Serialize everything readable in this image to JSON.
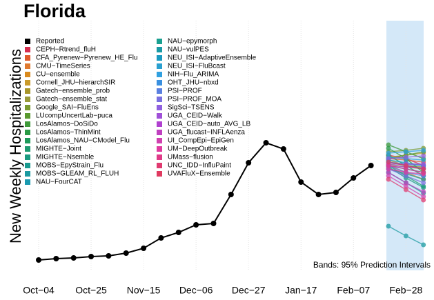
{
  "chart_data": {
    "type": "line",
    "title": "Florida",
    "y_label": "New Weekly Hospitalizations",
    "annotation": "Bands: 95% Prediction Intervals",
    "categories": [
      "Oct−04",
      null,
      null,
      "Oct−25",
      null,
      null,
      "Nov−15",
      null,
      null,
      "Dec−06",
      null,
      null,
      "Dec−27",
      null,
      null,
      "Jan−17",
      null,
      null,
      "Feb−07",
      null,
      null,
      "Feb−28",
      null
    ],
    "ylim": [
      0,
      360
    ],
    "series": [
      {
        "name": "Reported",
        "color": "#000000",
        "values": [
          13,
          15,
          16,
          18,
          19,
          23,
          30,
          45,
          53,
          64,
          66,
          108,
          154,
          183,
          174,
          126,
          108,
          111,
          132,
          150,
          null,
          null,
          null
        ]
      },
      {
        "name": "CEPH−Rtrend_fluH",
        "color": "#d62d4f",
        "values": [
          null,
          null,
          null,
          null,
          null,
          null,
          null,
          null,
          null,
          null,
          null,
          null,
          null,
          null,
          null,
          null,
          null,
          null,
          null,
          null,
          165,
          160,
          150
        ]
      },
      {
        "name": "CFA_Pyrenew−Pyrenew_HE_Flu",
        "color": "#e05a2b",
        "values": [
          null,
          null,
          null,
          null,
          null,
          null,
          null,
          null,
          null,
          null,
          null,
          null,
          null,
          null,
          null,
          null,
          null,
          null,
          null,
          null,
          160,
          158,
          155
        ]
      },
      {
        "name": "CMU−TimeSeries",
        "color": "#e07a30",
        "values": [
          null,
          null,
          null,
          null,
          null,
          null,
          null,
          null,
          null,
          null,
          null,
          null,
          null,
          null,
          null,
          null,
          null,
          null,
          null,
          null,
          150,
          140,
          130
        ]
      },
      {
        "name": "CU−ensemble",
        "color": "#d98a1e",
        "values": [
          null,
          null,
          null,
          null,
          null,
          null,
          null,
          null,
          null,
          null,
          null,
          null,
          null,
          null,
          null,
          null,
          null,
          null,
          null,
          null,
          158,
          150,
          145
        ]
      },
      {
        "name": "Cornell_JHU−hierarchSIR",
        "color": "#c99a2a",
        "values": [
          null,
          null,
          null,
          null,
          null,
          null,
          null,
          null,
          null,
          null,
          null,
          null,
          null,
          null,
          null,
          null,
          null,
          null,
          null,
          null,
          162,
          165,
          168
        ]
      },
      {
        "name": "Gatech−ensemble_prob",
        "color": "#a8952a",
        "values": [
          null,
          null,
          null,
          null,
          null,
          null,
          null,
          null,
          null,
          null,
          null,
          null,
          null,
          null,
          null,
          null,
          null,
          null,
          null,
          null,
          155,
          150,
          148
        ]
      },
      {
        "name": "Gatech−ensemble_stat",
        "color": "#9a9a3a",
        "values": [
          null,
          null,
          null,
          null,
          null,
          null,
          null,
          null,
          null,
          null,
          null,
          null,
          null,
          null,
          null,
          null,
          null,
          null,
          null,
          null,
          152,
          148,
          145
        ]
      },
      {
        "name": "Google_SAI−FluEns",
        "color": "#7a9a30",
        "values": [
          null,
          null,
          null,
          null,
          null,
          null,
          null,
          null,
          null,
          null,
          null,
          null,
          null,
          null,
          null,
          null,
          null,
          null,
          null,
          null,
          170,
          172,
          175
        ]
      },
      {
        "name": "LUcompUncertLab−puca",
        "color": "#5a9a30",
        "values": [
          null,
          null,
          null,
          null,
          null,
          null,
          null,
          null,
          null,
          null,
          null,
          null,
          null,
          null,
          null,
          null,
          null,
          null,
          null,
          null,
          160,
          165,
          170
        ]
      },
      {
        "name": "LosAlamos−DoSiDo",
        "color": "#3f9a3a",
        "values": [
          null,
          null,
          null,
          null,
          null,
          null,
          null,
          null,
          null,
          null,
          null,
          null,
          null,
          null,
          null,
          null,
          null,
          null,
          null,
          null,
          180,
          170,
          160
        ]
      },
      {
        "name": "LosAlamos−ThinMint",
        "color": "#2a9a45",
        "values": [
          null,
          null,
          null,
          null,
          null,
          null,
          null,
          null,
          null,
          null,
          null,
          null,
          null,
          null,
          null,
          null,
          null,
          null,
          null,
          null,
          175,
          160,
          140
        ]
      },
      {
        "name": "LosAlamos_NAU−CModel_Flu",
        "color": "#1e9a5a",
        "values": [
          null,
          null,
          null,
          null,
          null,
          null,
          null,
          null,
          null,
          null,
          null,
          null,
          null,
          null,
          null,
          null,
          null,
          null,
          null,
          null,
          165,
          150,
          135
        ]
      },
      {
        "name": "MIGHTE−Joint",
        "color": "#1e9a70",
        "values": [
          null,
          null,
          null,
          null,
          null,
          null,
          null,
          null,
          null,
          null,
          null,
          null,
          null,
          null,
          null,
          null,
          null,
          null,
          null,
          null,
          150,
          135,
          120
        ]
      },
      {
        "name": "MIGHTE−Nsemble",
        "color": "#1a9a80",
        "values": [
          null,
          null,
          null,
          null,
          null,
          null,
          null,
          null,
          null,
          null,
          null,
          null,
          null,
          null,
          null,
          null,
          null,
          null,
          null,
          null,
          148,
          132,
          118
        ]
      },
      {
        "name": "MOBS−EpyStrain_Flu",
        "color": "#1a9a90",
        "values": [
          null,
          null,
          null,
          null,
          null,
          null,
          null,
          null,
          null,
          null,
          null,
          null,
          null,
          null,
          null,
          null,
          null,
          null,
          null,
          null,
          140,
          125,
          110
        ]
      },
      {
        "name": "MOBS−GLEAM_RL_FLUH",
        "color": "#1a9aa0",
        "values": [
          null,
          null,
          null,
          null,
          null,
          null,
          null,
          null,
          null,
          null,
          null,
          null,
          null,
          null,
          null,
          null,
          null,
          null,
          null,
          null,
          62,
          48,
          35
        ]
      },
      {
        "name": "NAU−FourCAT",
        "color": "#1a9ab0",
        "values": [
          null,
          null,
          null,
          null,
          null,
          null,
          null,
          null,
          null,
          null,
          null,
          null,
          null,
          null,
          null,
          null,
          null,
          null,
          null,
          null,
          155,
          150,
          146
        ]
      },
      {
        "name": "NAU−epymorph",
        "color": "#1aa090",
        "values": [
          null,
          null,
          null,
          null,
          null,
          null,
          null,
          null,
          null,
          null,
          null,
          null,
          null,
          null,
          null,
          null,
          null,
          null,
          null,
          null,
          145,
          138,
          130
        ]
      },
      {
        "name": "NAU−vulPES",
        "color": "#1a9aa5",
        "values": [
          null,
          null,
          null,
          null,
          null,
          null,
          null,
          null,
          null,
          null,
          null,
          null,
          null,
          null,
          null,
          null,
          null,
          null,
          null,
          null,
          150,
          145,
          140
        ]
      },
      {
        "name": "NEU_ISI−AdaptiveEnsemble",
        "color": "#1a9ac0",
        "values": [
          null,
          null,
          null,
          null,
          null,
          null,
          null,
          null,
          null,
          null,
          null,
          null,
          null,
          null,
          null,
          null,
          null,
          null,
          null,
          null,
          158,
          154,
          150
        ]
      },
      {
        "name": "NEU_ISI−FluBcast",
        "color": "#2aa0d0",
        "values": [
          null,
          null,
          null,
          null,
          null,
          null,
          null,
          null,
          null,
          null,
          null,
          null,
          null,
          null,
          null,
          null,
          null,
          null,
          null,
          null,
          162,
          160,
          158
        ]
      },
      {
        "name": "NIH−Flu_ARIMA",
        "color": "#30a0e0",
        "values": [
          null,
          null,
          null,
          null,
          null,
          null,
          null,
          null,
          null,
          null,
          null,
          null,
          null,
          null,
          null,
          null,
          null,
          null,
          null,
          null,
          168,
          170,
          172
        ]
      },
      {
        "name": "OHT_JHU−nbxd",
        "color": "#3a90e0",
        "values": [
          null,
          null,
          null,
          null,
          null,
          null,
          null,
          null,
          null,
          null,
          null,
          null,
          null,
          null,
          null,
          null,
          null,
          null,
          null,
          null,
          155,
          152,
          150
        ]
      },
      {
        "name": "PSI−PROF",
        "color": "#5a80e0",
        "values": [
          null,
          null,
          null,
          null,
          null,
          null,
          null,
          null,
          null,
          null,
          null,
          null,
          null,
          null,
          null,
          null,
          null,
          null,
          null,
          null,
          150,
          140,
          135
        ]
      },
      {
        "name": "PSI−PROF_MOA",
        "color": "#7a70e0",
        "values": [
          null,
          null,
          null,
          null,
          null,
          null,
          null,
          null,
          null,
          null,
          null,
          null,
          null,
          null,
          null,
          null,
          null,
          null,
          null,
          null,
          145,
          135,
          125
        ]
      },
      {
        "name": "SigSci−TSENS",
        "color": "#9060e0",
        "values": [
          null,
          null,
          null,
          null,
          null,
          null,
          null,
          null,
          null,
          null,
          null,
          null,
          null,
          null,
          null,
          null,
          null,
          null,
          null,
          null,
          160,
          162,
          164
        ]
      },
      {
        "name": "UGA_CEID−Walk",
        "color": "#a050d8",
        "values": [
          null,
          null,
          null,
          null,
          null,
          null,
          null,
          null,
          null,
          null,
          null,
          null,
          null,
          null,
          null,
          null,
          null,
          null,
          null,
          null,
          152,
          152,
          152
        ]
      },
      {
        "name": "UGA_CEID−auto_AVG_LB",
        "color": "#b040d0",
        "values": [
          null,
          null,
          null,
          null,
          null,
          null,
          null,
          null,
          null,
          null,
          null,
          null,
          null,
          null,
          null,
          null,
          null,
          null,
          null,
          null,
          150,
          148,
          146
        ]
      },
      {
        "name": "UGA_flucast−INFLAenza",
        "color": "#c040c0",
        "values": [
          null,
          null,
          null,
          null,
          null,
          null,
          null,
          null,
          null,
          null,
          null,
          null,
          null,
          null,
          null,
          null,
          null,
          null,
          null,
          null,
          140,
          125,
          112
        ]
      },
      {
        "name": "UI_CompEpi−EpiGen",
        "color": "#d040b0",
        "values": [
          null,
          null,
          null,
          null,
          null,
          null,
          null,
          null,
          null,
          null,
          null,
          null,
          null,
          null,
          null,
          null,
          null,
          null,
          null,
          null,
          135,
          120,
          105
        ]
      },
      {
        "name": "UM−DeepOutbreak",
        "color": "#e03aa0",
        "values": [
          null,
          null,
          null,
          null,
          null,
          null,
          null,
          null,
          null,
          null,
          null,
          null,
          null,
          null,
          null,
          null,
          null,
          null,
          null,
          null,
          145,
          140,
          138
        ]
      },
      {
        "name": "UMass−flusion",
        "color": "#e03a88",
        "values": [
          null,
          null,
          null,
          null,
          null,
          null,
          null,
          null,
          null,
          null,
          null,
          null,
          null,
          null,
          null,
          null,
          null,
          null,
          null,
          null,
          150,
          145,
          140
        ]
      },
      {
        "name": "UNC_IDD−InfluPaint",
        "color": "#e03a70",
        "values": [
          null,
          null,
          null,
          null,
          null,
          null,
          null,
          null,
          null,
          null,
          null,
          null,
          null,
          null,
          null,
          null,
          null,
          null,
          null,
          null,
          130,
          115,
          100
        ]
      },
      {
        "name": "UVAFluX−Ensemble",
        "color": "#e03a60",
        "values": [
          null,
          null,
          null,
          null,
          null,
          null,
          null,
          null,
          null,
          null,
          null,
          null,
          null,
          null,
          null,
          null,
          null,
          null,
          null,
          null,
          155,
          150,
          145
        ]
      }
    ]
  }
}
